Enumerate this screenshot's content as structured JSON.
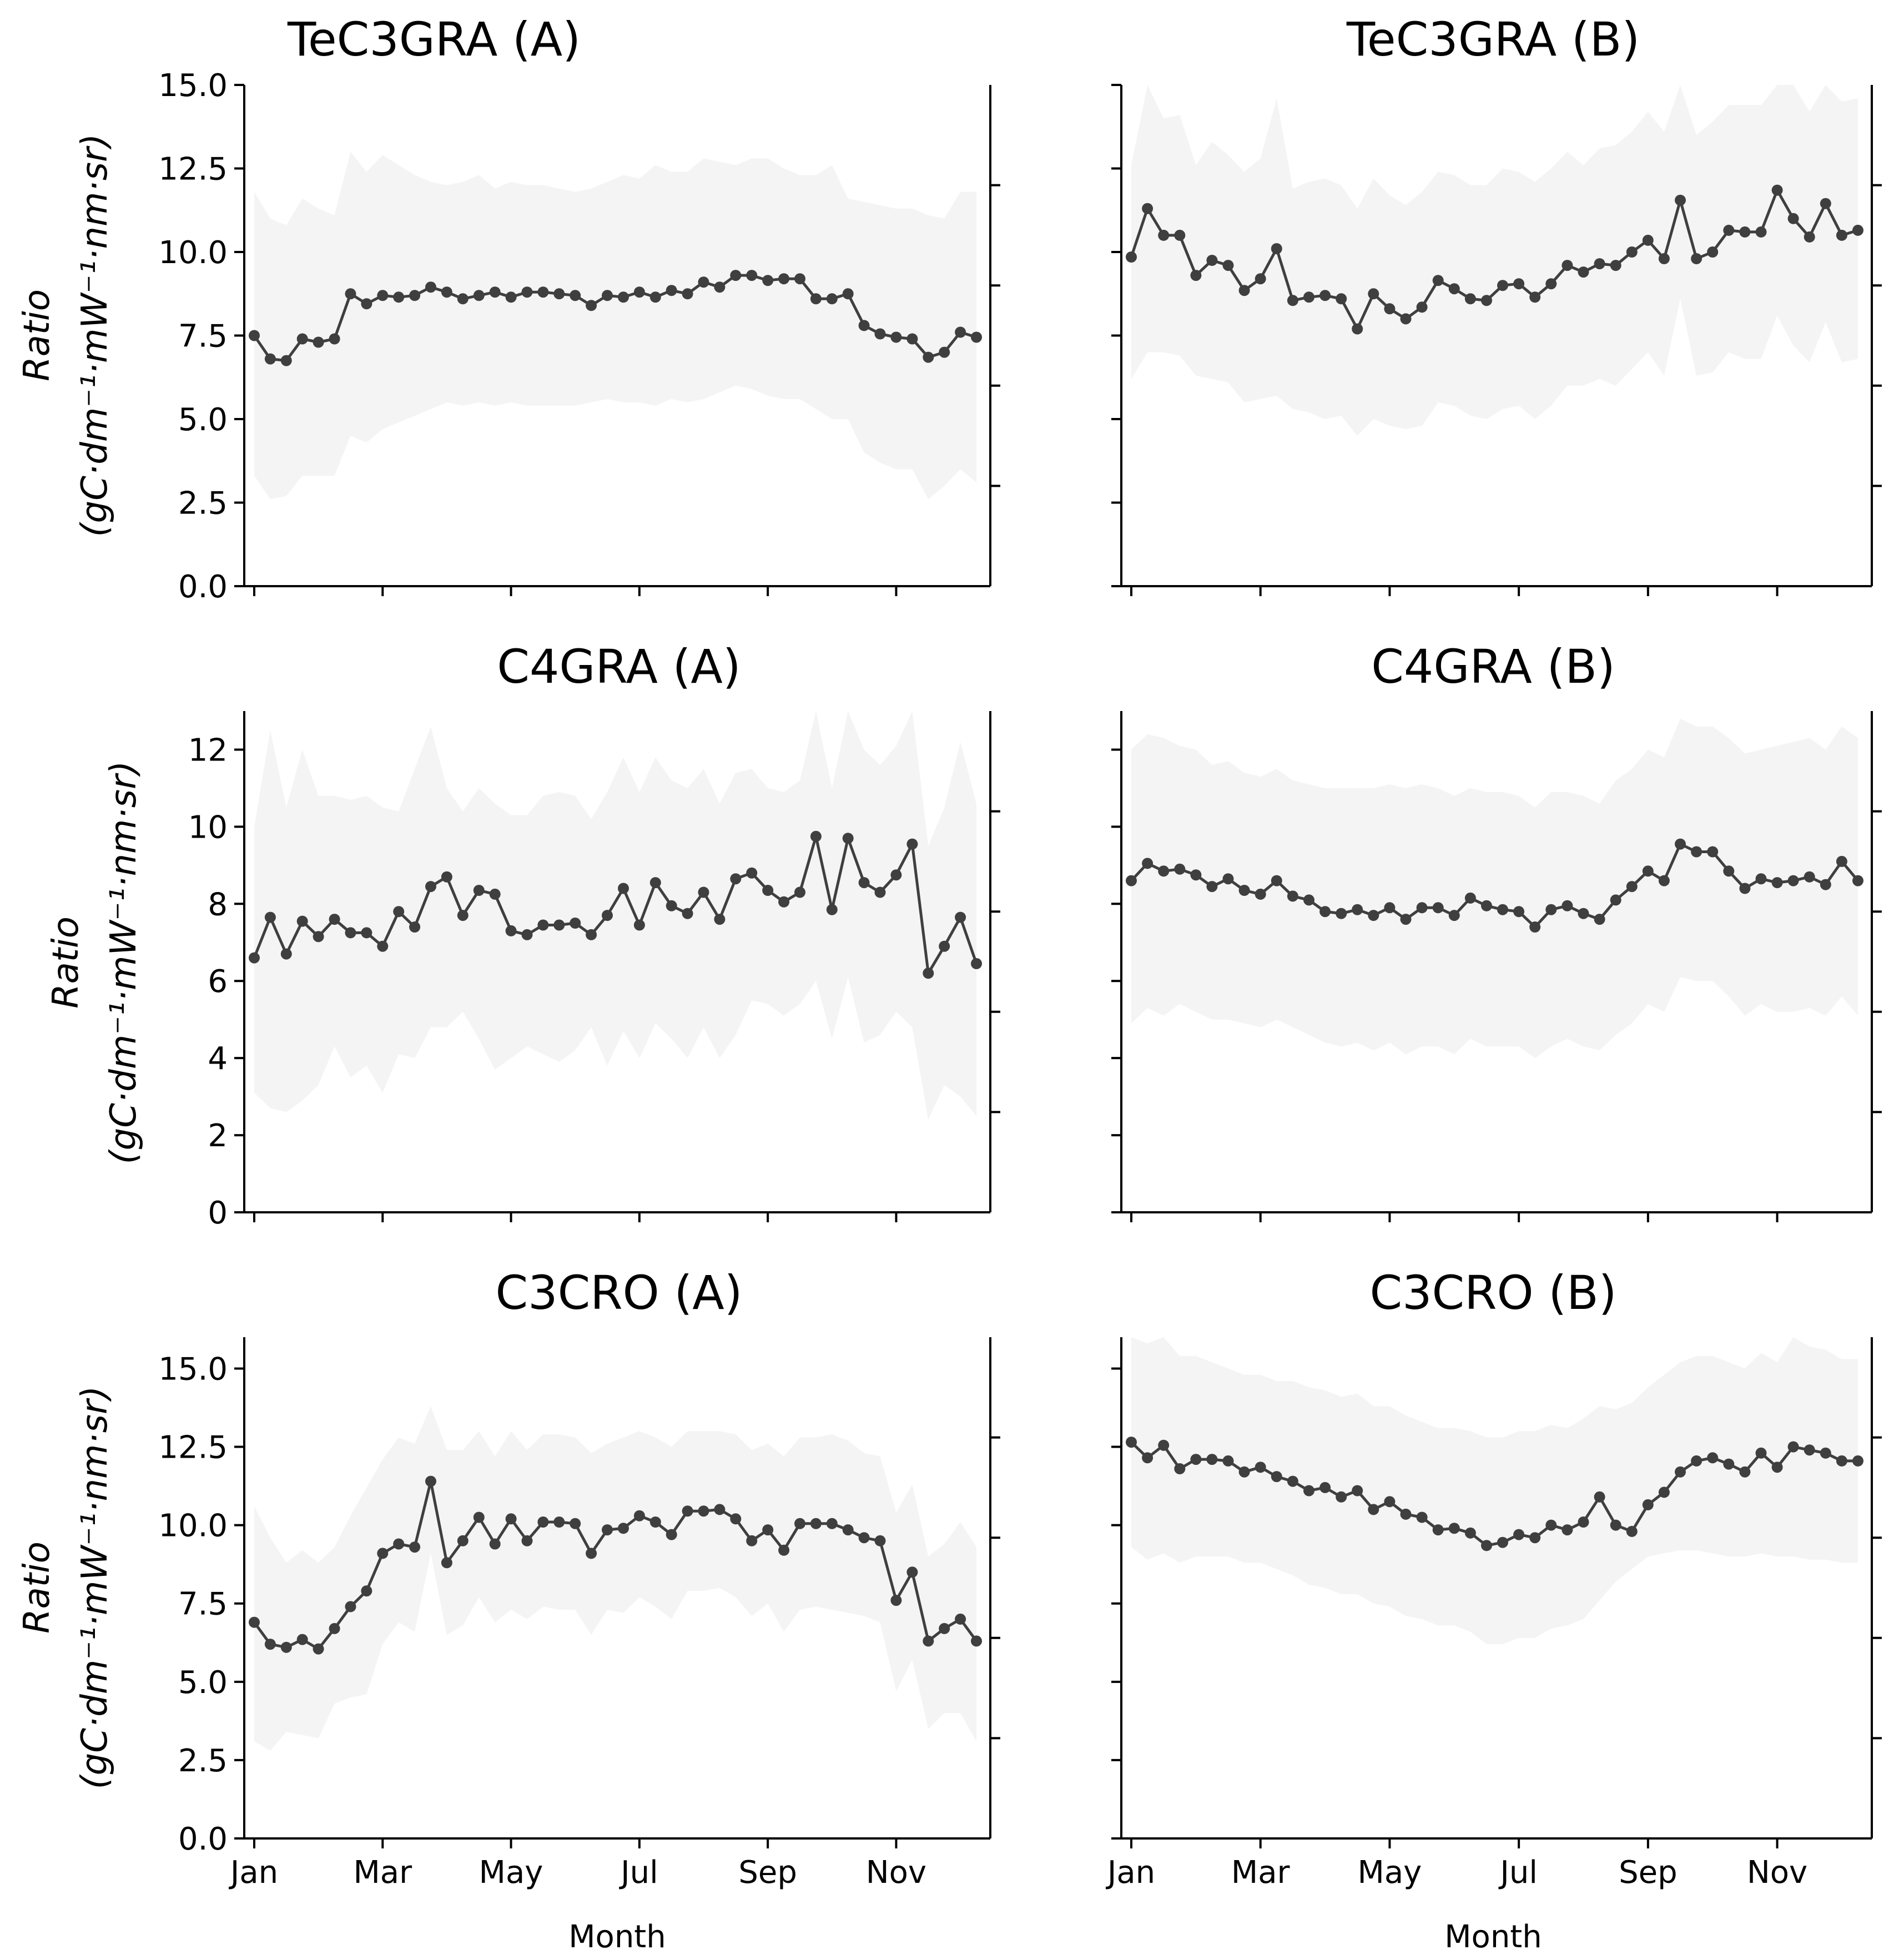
{
  "chart_data": [
    {
      "type": "line",
      "title": "TeC3GRA (A)",
      "ylabel_1": "Ratio",
      "ylabel_2": "(gC·dm⁻¹·mW⁻¹·nm·sr)",
      "xlabel": "",
      "ylim": [
        0,
        15
      ],
      "yticks": [
        "0.0",
        "2.5",
        "5.0",
        "7.5",
        "10.0",
        "12.5",
        "15.0"
      ],
      "xticks": [],
      "x": [
        1,
        2,
        3,
        4,
        5,
        6,
        7,
        8,
        9,
        10,
        11,
        12,
        13,
        14,
        15,
        16,
        17,
        18,
        19,
        20,
        21,
        22,
        23,
        24,
        25,
        26,
        27,
        28,
        29,
        30,
        31,
        32,
        33,
        34,
        35,
        36,
        37,
        38,
        39,
        40,
        41,
        42,
        43,
        44,
        45,
        46
      ],
      "values": [
        7.5,
        6.8,
        6.75,
        7.4,
        7.3,
        7.4,
        8.75,
        8.45,
        8.7,
        8.65,
        8.7,
        8.95,
        8.8,
        8.6,
        8.7,
        8.8,
        8.65,
        8.8,
        8.8,
        8.75,
        8.7,
        8.4,
        8.7,
        8.65,
        8.8,
        8.65,
        8.85,
        8.75,
        9.1,
        8.95,
        9.3,
        9.3,
        9.15,
        9.2,
        9.2,
        8.6,
        8.6,
        8.75,
        7.8,
        7.55,
        7.45,
        7.4,
        6.85,
        7.0,
        7.6,
        7.45
      ],
      "upper": [
        11.8,
        11.0,
        10.8,
        11.6,
        11.3,
        11.1,
        13.0,
        12.4,
        12.9,
        12.6,
        12.3,
        12.1,
        12.0,
        12.1,
        12.3,
        11.9,
        12.1,
        12.0,
        12.0,
        11.9,
        11.8,
        11.9,
        12.1,
        12.3,
        12.2,
        12.6,
        12.4,
        12.4,
        12.8,
        12.7,
        12.6,
        12.8,
        12.8,
        12.5,
        12.3,
        12.3,
        12.6,
        11.6,
        11.5,
        11.4,
        11.3,
        11.3,
        11.1,
        11.0,
        11.8,
        11.8
      ],
      "lower": [
        3.3,
        2.6,
        2.7,
        3.3,
        3.3,
        3.3,
        4.5,
        4.3,
        4.7,
        4.9,
        5.1,
        5.3,
        5.5,
        5.4,
        5.5,
        5.4,
        5.5,
        5.4,
        5.4,
        5.4,
        5.4,
        5.5,
        5.6,
        5.5,
        5.5,
        5.4,
        5.6,
        5.5,
        5.6,
        5.8,
        6.0,
        5.9,
        5.7,
        5.6,
        5.6,
        5.3,
        5.0,
        5.0,
        4.0,
        3.7,
        3.5,
        3.5,
        2.6,
        3.0,
        3.5,
        3.1
      ],
      "series_color": "#3f3f3f",
      "band_color": "#f4f4f4"
    },
    {
      "type": "line",
      "title": "TeC3GRA (B)",
      "ylabel_1": "",
      "ylabel_2": "",
      "xlabel": "",
      "ylim": [
        0,
        15
      ],
      "yticks": [],
      "xticks": [],
      "x": [
        1,
        2,
        3,
        4,
        5,
        6,
        7,
        8,
        9,
        10,
        11,
        12,
        13,
        14,
        15,
        16,
        17,
        18,
        19,
        20,
        21,
        22,
        23,
        24,
        25,
        26,
        27,
        28,
        29,
        30,
        31,
        32,
        33,
        34,
        35,
        36,
        37,
        38,
        39,
        40,
        41,
        42,
        43,
        44,
        45,
        46
      ],
      "values": [
        9.85,
        11.3,
        10.5,
        10.5,
        9.3,
        9.75,
        9.6,
        8.85,
        9.2,
        10.1,
        8.55,
        8.65,
        8.7,
        8.6,
        7.7,
        8.75,
        8.3,
        8.0,
        8.35,
        9.15,
        8.9,
        8.6,
        8.55,
        9.0,
        9.05,
        8.65,
        9.05,
        9.6,
        9.4,
        9.65,
        9.6,
        10.0,
        10.35,
        9.8,
        11.55,
        9.8,
        10.0,
        10.65,
        10.6,
        10.6,
        11.85,
        11.0,
        10.45,
        11.45,
        10.5,
        10.65
      ],
      "upper": [
        12.6,
        15.0,
        14.0,
        14.1,
        12.6,
        13.3,
        12.9,
        12.4,
        12.8,
        14.6,
        11.9,
        12.1,
        12.2,
        12.0,
        11.3,
        12.2,
        11.7,
        11.4,
        11.8,
        12.4,
        12.3,
        12.0,
        12.0,
        12.5,
        12.4,
        12.1,
        12.5,
        13.0,
        12.6,
        13.1,
        13.2,
        13.6,
        14.2,
        13.6,
        15.0,
        13.5,
        13.9,
        14.4,
        14.4,
        14.4,
        15.0,
        15.0,
        14.2,
        15.0,
        14.5,
        14.6
      ],
      "lower": [
        6.2,
        7.0,
        7.0,
        6.9,
        6.3,
        6.2,
        6.1,
        5.5,
        5.6,
        5.7,
        5.3,
        5.2,
        5.0,
        5.1,
        4.5,
        5.0,
        4.8,
        4.7,
        4.8,
        5.5,
        5.4,
        5.1,
        5.0,
        5.3,
        5.4,
        5.0,
        5.4,
        6.0,
        6.0,
        6.2,
        6.0,
        6.5,
        7.0,
        6.3,
        8.6,
        6.3,
        6.4,
        7.0,
        6.8,
        6.8,
        8.1,
        7.2,
        6.7,
        7.9,
        6.7,
        6.8
      ],
      "series_color": "#3f3f3f",
      "band_color": "#f4f4f4"
    },
    {
      "type": "line",
      "title": "C4GRA (A)",
      "ylabel_1": "Ratio",
      "ylabel_2": "(gC·dm⁻¹·mW⁻¹·nm·sr)",
      "xlabel": "",
      "ylim": [
        0,
        13
      ],
      "yticks": [
        "0",
        "2",
        "4",
        "6",
        "8",
        "10",
        "12"
      ],
      "xticks": [],
      "x": [
        1,
        2,
        3,
        4,
        5,
        6,
        7,
        8,
        9,
        10,
        11,
        12,
        13,
        14,
        15,
        16,
        17,
        18,
        19,
        20,
        21,
        22,
        23,
        24,
        25,
        26,
        27,
        28,
        29,
        30,
        31,
        32,
        33,
        34,
        35,
        36,
        37,
        38,
        39,
        40,
        41,
        42,
        43,
        44,
        45,
        46
      ],
      "values": [
        6.6,
        7.65,
        6.7,
        7.55,
        7.15,
        7.6,
        7.25,
        7.25,
        6.9,
        7.8,
        7.4,
        8.45,
        8.7,
        7.7,
        8.35,
        8.25,
        7.3,
        7.2,
        7.45,
        7.45,
        7.5,
        7.2,
        7.7,
        8.4,
        7.45,
        8.55,
        7.95,
        7.75,
        8.3,
        7.6,
        8.65,
        8.8,
        8.35,
        8.05,
        8.3,
        9.75,
        7.85,
        9.7,
        8.55,
        8.3,
        8.75,
        9.55,
        6.2,
        6.9,
        7.65,
        6.45
      ],
      "upper": [
        10.0,
        12.5,
        10.5,
        12.0,
        10.8,
        10.8,
        10.7,
        10.8,
        10.5,
        10.4,
        11.5,
        12.6,
        11.0,
        10.4,
        11.0,
        10.6,
        10.3,
        10.3,
        10.8,
        10.9,
        10.8,
        10.2,
        10.9,
        11.8,
        10.9,
        11.8,
        11.2,
        11.0,
        11.5,
        10.6,
        11.4,
        11.5,
        11.0,
        10.9,
        11.2,
        13.0,
        11.0,
        13.0,
        12.0,
        11.6,
        12.1,
        13.0,
        9.5,
        10.5,
        12.2,
        10.6
      ],
      "lower": [
        3.1,
        2.7,
        2.6,
        2.9,
        3.3,
        4.3,
        3.5,
        3.8,
        3.1,
        4.1,
        4.0,
        4.8,
        4.8,
        5.2,
        4.5,
        3.7,
        4.0,
        4.3,
        4.1,
        3.9,
        4.2,
        4.8,
        3.8,
        4.7,
        4.0,
        4.9,
        4.5,
        4.0,
        4.8,
        4.0,
        4.6,
        5.5,
        5.4,
        5.1,
        5.4,
        6.0,
        4.5,
        6.1,
        4.4,
        4.6,
        5.2,
        4.8,
        2.4,
        3.3,
        3.0,
        2.5
      ],
      "series_color": "#3f3f3f",
      "band_color": "#f4f4f4"
    },
    {
      "type": "line",
      "title": "C4GRA (B)",
      "ylabel_1": "",
      "ylabel_2": "",
      "xlabel": "",
      "ylim": [
        0,
        13
      ],
      "yticks": [],
      "xticks": [],
      "x": [
        1,
        2,
        3,
        4,
        5,
        6,
        7,
        8,
        9,
        10,
        11,
        12,
        13,
        14,
        15,
        16,
        17,
        18,
        19,
        20,
        21,
        22,
        23,
        24,
        25,
        26,
        27,
        28,
        29,
        30,
        31,
        32,
        33,
        34,
        35,
        36,
        37,
        38,
        39,
        40,
        41,
        42,
        43,
        44,
        45,
        46
      ],
      "values": [
        8.6,
        9.05,
        8.85,
        8.9,
        8.75,
        8.45,
        8.65,
        8.35,
        8.25,
        8.6,
        8.2,
        8.1,
        7.8,
        7.75,
        7.85,
        7.7,
        7.9,
        7.6,
        7.9,
        7.9,
        7.7,
        8.15,
        7.95,
        7.85,
        7.8,
        7.4,
        7.85,
        7.95,
        7.75,
        7.6,
        8.1,
        8.45,
        8.85,
        8.6,
        9.55,
        9.35,
        9.35,
        8.85,
        8.4,
        8.65,
        8.55,
        8.6,
        8.7,
        8.5,
        9.1,
        8.6
      ],
      "upper": [
        12.0,
        12.4,
        12.3,
        12.1,
        12.0,
        11.6,
        11.7,
        11.4,
        11.3,
        11.5,
        11.2,
        11.1,
        11.0,
        11.0,
        11.0,
        11.0,
        11.1,
        11.0,
        11.1,
        11.0,
        10.8,
        11.0,
        10.9,
        10.9,
        10.8,
        10.5,
        10.9,
        10.9,
        10.8,
        10.6,
        11.2,
        11.5,
        12.0,
        11.8,
        12.8,
        12.6,
        12.6,
        12.3,
        11.9,
        12.0,
        12.1,
        12.2,
        12.3,
        12.0,
        12.6,
        12.3
      ],
      "lower": [
        4.9,
        5.3,
        5.1,
        5.4,
        5.2,
        5.0,
        5.0,
        4.9,
        4.8,
        5.0,
        4.8,
        4.6,
        4.4,
        4.3,
        4.4,
        4.2,
        4.4,
        4.1,
        4.3,
        4.3,
        4.1,
        4.5,
        4.3,
        4.3,
        4.3,
        4.0,
        4.3,
        4.5,
        4.3,
        4.2,
        4.6,
        4.9,
        5.4,
        5.2,
        6.1,
        6.0,
        6.0,
        5.6,
        5.1,
        5.4,
        5.2,
        5.2,
        5.3,
        5.1,
        5.6,
        5.1
      ],
      "series_color": "#3f3f3f",
      "band_color": "#f4f4f4"
    },
    {
      "type": "line",
      "title": "C3CRO (A)",
      "ylabel_1": "Ratio",
      "ylabel_2": "(gC·dm⁻¹·mW⁻¹·nm·sr)",
      "xlabel": "Month",
      "ylim": [
        0,
        16
      ],
      "yticks": [
        "0.0",
        "2.5",
        "5.0",
        "7.5",
        "10.0",
        "12.5",
        "15.0"
      ],
      "xticks": [
        "Jan",
        "Mar",
        "May",
        "Jul",
        "Sep",
        "Nov"
      ],
      "x": [
        1,
        2,
        3,
        4,
        5,
        6,
        7,
        8,
        9,
        10,
        11,
        12,
        13,
        14,
        15,
        16,
        17,
        18,
        19,
        20,
        21,
        22,
        23,
        24,
        25,
        26,
        27,
        28,
        29,
        30,
        31,
        32,
        33,
        34,
        35,
        36,
        37,
        38,
        39,
        40,
        41,
        42,
        43,
        44,
        45,
        46
      ],
      "values": [
        6.9,
        6.2,
        6.1,
        6.35,
        6.05,
        6.7,
        7.4,
        7.9,
        9.1,
        9.4,
        9.3,
        11.4,
        8.8,
        9.5,
        10.25,
        9.4,
        10.2,
        9.5,
        10.1,
        10.1,
        10.05,
        9.1,
        9.85,
        9.9,
        10.3,
        10.1,
        9.7,
        10.45,
        10.45,
        10.5,
        10.2,
        9.5,
        9.85,
        9.2,
        10.05,
        10.05,
        10.05,
        9.85,
        9.6,
        9.5,
        7.6,
        8.5,
        6.3,
        6.7,
        7.0,
        6.3
      ],
      "upper": [
        10.6,
        9.6,
        8.8,
        9.2,
        8.8,
        9.3,
        10.3,
        11.2,
        12.1,
        12.8,
        12.6,
        13.8,
        12.4,
        12.4,
        13.0,
        12.2,
        13.0,
        12.4,
        12.9,
        12.9,
        12.8,
        12.3,
        12.6,
        12.8,
        13.0,
        12.8,
        12.5,
        13.0,
        13.0,
        13.0,
        12.9,
        12.4,
        12.6,
        12.2,
        12.8,
        12.8,
        12.9,
        12.7,
        12.3,
        12.2,
        10.4,
        11.3,
        9.0,
        9.4,
        10.1,
        9.3
      ],
      "lower": [
        3.1,
        2.8,
        3.4,
        3.3,
        3.2,
        4.3,
        4.5,
        4.6,
        6.2,
        6.9,
        6.6,
        9.1,
        6.5,
        6.8,
        7.7,
        6.9,
        7.3,
        7.0,
        7.4,
        7.3,
        7.3,
        6.5,
        7.3,
        7.2,
        7.7,
        7.4,
        7.0,
        7.9,
        7.9,
        8.0,
        7.7,
        7.1,
        7.5,
        6.6,
        7.3,
        7.4,
        7.3,
        7.2,
        7.1,
        6.9,
        4.7,
        5.7,
        3.5,
        4.0,
        4.0,
        3.1
      ],
      "series_color": "#3f3f3f",
      "band_color": "#f4f4f4"
    },
    {
      "type": "line",
      "title": "C3CRO (B)",
      "ylabel_1": "",
      "ylabel_2": "",
      "xlabel": "Month",
      "ylim": [
        0,
        16
      ],
      "yticks": [],
      "xticks": [
        "Jan",
        "Mar",
        "May",
        "Jul",
        "Sep",
        "Nov"
      ],
      "x": [
        1,
        2,
        3,
        4,
        5,
        6,
        7,
        8,
        9,
        10,
        11,
        12,
        13,
        14,
        15,
        16,
        17,
        18,
        19,
        20,
        21,
        22,
        23,
        24,
        25,
        26,
        27,
        28,
        29,
        30,
        31,
        32,
        33,
        34,
        35,
        36,
        37,
        38,
        39,
        40,
        41,
        42,
        43,
        44,
        45,
        46
      ],
      "values": [
        12.65,
        12.15,
        12.55,
        11.8,
        12.1,
        12.1,
        12.05,
        11.7,
        11.85,
        11.55,
        11.4,
        11.1,
        11.2,
        10.9,
        11.1,
        10.5,
        10.75,
        10.35,
        10.25,
        9.85,
        9.9,
        9.75,
        9.35,
        9.45,
        9.7,
        9.6,
        10.0,
        9.85,
        10.1,
        10.9,
        10.0,
        9.8,
        10.65,
        11.05,
        11.7,
        12.05,
        12.15,
        11.95,
        11.7,
        12.3,
        11.85,
        12.5,
        12.4,
        12.3,
        12.05,
        12.05
      ],
      "upper": [
        16.0,
        15.8,
        16.0,
        15.4,
        15.4,
        15.2,
        15.0,
        14.8,
        14.8,
        14.6,
        14.6,
        14.4,
        14.3,
        14.1,
        14.2,
        13.8,
        13.8,
        13.5,
        13.3,
        13.1,
        13.1,
        13.0,
        12.8,
        12.8,
        13.0,
        13.0,
        13.2,
        13.1,
        13.4,
        13.8,
        13.7,
        13.9,
        14.4,
        14.8,
        15.2,
        15.4,
        15.4,
        15.2,
        15.0,
        15.5,
        15.2,
        16.0,
        15.7,
        15.6,
        15.3,
        15.3
      ],
      "lower": [
        9.3,
        8.9,
        9.1,
        8.8,
        9.0,
        9.0,
        9.0,
        8.8,
        8.8,
        8.6,
        8.4,
        8.1,
        8.0,
        7.8,
        7.8,
        7.5,
        7.4,
        7.1,
        7.0,
        6.8,
        6.8,
        6.6,
        6.2,
        6.2,
        6.4,
        6.4,
        6.7,
        6.8,
        7.0,
        7.6,
        8.2,
        8.6,
        9.0,
        9.1,
        9.2,
        9.2,
        9.1,
        9.0,
        9.0,
        9.1,
        9.0,
        9.0,
        8.9,
        8.9,
        8.8,
        8.8
      ],
      "series_color": "#3f3f3f",
      "band_color": "#f4f4f4"
    }
  ]
}
